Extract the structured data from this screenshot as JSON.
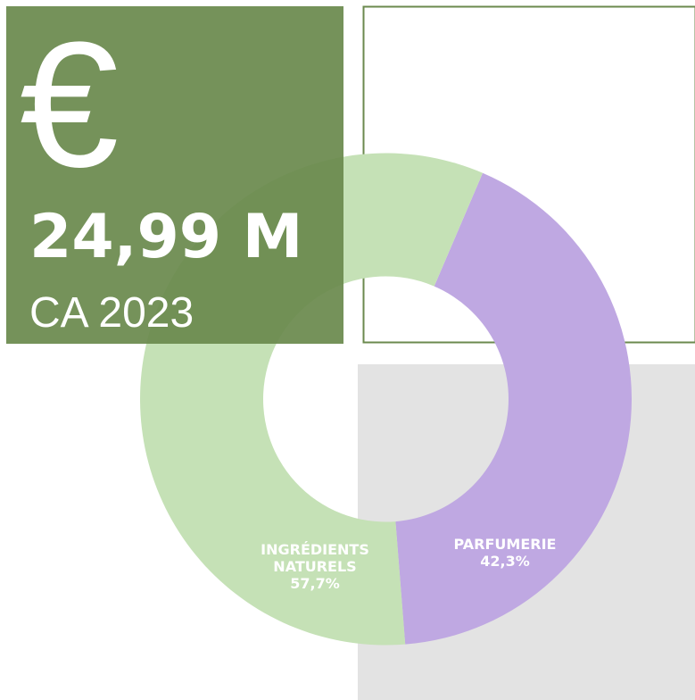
{
  "kpi": {
    "symbol": "€",
    "value": "24,99 M",
    "label": "CA 2023"
  },
  "chart_data": {
    "type": "donut",
    "categories": [
      "PARFUMERIE",
      "INGRÉDIENTS NATURELS"
    ],
    "values": [
      42.3,
      57.7
    ],
    "value_labels": [
      "42,3%",
      "57,7%"
    ],
    "colors": [
      "#bfa8e2",
      "#c5e1b6"
    ]
  }
}
